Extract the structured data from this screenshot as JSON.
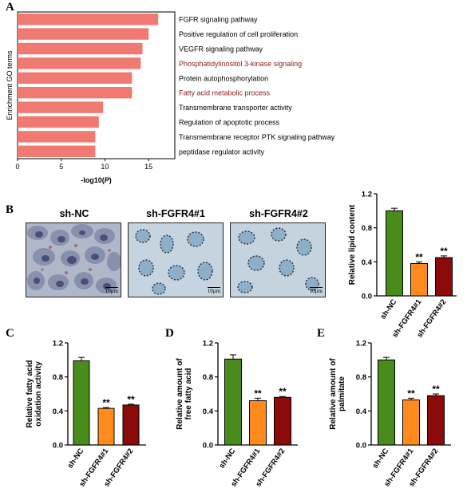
{
  "panel_labels": [
    "A",
    "B",
    "C",
    "D",
    "E"
  ],
  "micrographs": [
    {
      "title": "sh-NC",
      "scale": "10μm"
    },
    {
      "title": "sh-FGFR4#1",
      "scale": "10μm"
    },
    {
      "title": "sh-FGFR4#2",
      "scale": "10μm"
    }
  ],
  "colors": {
    "go_bar": "#f07a72",
    "sh_nc": "#4a8c1c",
    "sh_fgfr4_1": "#ff8a1e",
    "sh_fgfr4_2": "#8b0a0a",
    "highlight_text": "#8b1a1a"
  },
  "chart_data": [
    {
      "panel": "A",
      "type": "bar",
      "orientation": "horizontal",
      "ylabel": "Enrichment GO terms",
      "xlabel": "-log10(P)",
      "xlim": [
        0,
        18
      ],
      "xticks": [
        0,
        5,
        10,
        15
      ],
      "categories": [
        "FGFR signaling pathway",
        "Positive regulation of cell proliferation",
        "VEGFR signaling pathway",
        "Phosphatidylinositol 3-kinase signaling",
        "Protein autophosphorylation",
        "Fatty acid metabolic process",
        "Transmembrane transporter activity",
        "Regulation of apoptotic process",
        "Transmembrane receptor PTK signaling pathway",
        "peptidase regulator activity"
      ],
      "highlighted": [
        "Phosphatidylinositol 3-kinase signaling",
        "Fatty acid metabolic process"
      ],
      "values": [
        16.1,
        15.0,
        14.3,
        14.1,
        13.1,
        13.1,
        9.8,
        9.3,
        8.9,
        8.9
      ]
    },
    {
      "panel": "B",
      "type": "bar",
      "ylabel": "Relative lipid content",
      "ylim": [
        0,
        1.2
      ],
      "yticks": [
        0,
        0.4,
        0.8,
        1.2
      ],
      "categories": [
        "sh-NC",
        "sh-FGFR4#1",
        "sh-FGFR4#2"
      ],
      "values": [
        1.0,
        0.38,
        0.45
      ],
      "errors": [
        0.03,
        0.02,
        0.02
      ],
      "significance": [
        "",
        "**",
        "**"
      ]
    },
    {
      "panel": "C",
      "type": "bar",
      "ylabel": [
        "Relative fatty acid",
        "oxidation activity"
      ],
      "ylim": [
        0,
        1.2
      ],
      "yticks": [
        0,
        0.4,
        0.8,
        1.2
      ],
      "categories": [
        "sh-NC",
        "sh-FGFR4#1",
        "sh-FGFR4#2"
      ],
      "values": [
        0.99,
        0.43,
        0.47
      ],
      "errors": [
        0.04,
        0.01,
        0.01
      ],
      "significance": [
        "",
        "**",
        "**"
      ]
    },
    {
      "panel": "D",
      "type": "bar",
      "ylabel": [
        "Relative amount of",
        "free fatty acid"
      ],
      "ylim": [
        0,
        1.2
      ],
      "yticks": [
        0,
        0.4,
        0.8,
        1.2
      ],
      "categories": [
        "sh-NC",
        "sh-FGFR4#1",
        "sh-FGFR4#2"
      ],
      "values": [
        1.01,
        0.52,
        0.56
      ],
      "errors": [
        0.05,
        0.03,
        0.01
      ],
      "significance": [
        "",
        "**",
        "**"
      ]
    },
    {
      "panel": "E",
      "type": "bar",
      "ylabel": [
        "Relative amount of",
        "palmitate"
      ],
      "ylim": [
        0,
        1.2
      ],
      "yticks": [
        0,
        0.4,
        0.8,
        1.2
      ],
      "categories": [
        "sh-NC",
        "sh-FGFR4#1",
        "sh-FGFR4#2"
      ],
      "values": [
        1.0,
        0.53,
        0.58
      ],
      "errors": [
        0.03,
        0.02,
        0.02
      ],
      "significance": [
        "",
        "**",
        "**"
      ]
    }
  ]
}
